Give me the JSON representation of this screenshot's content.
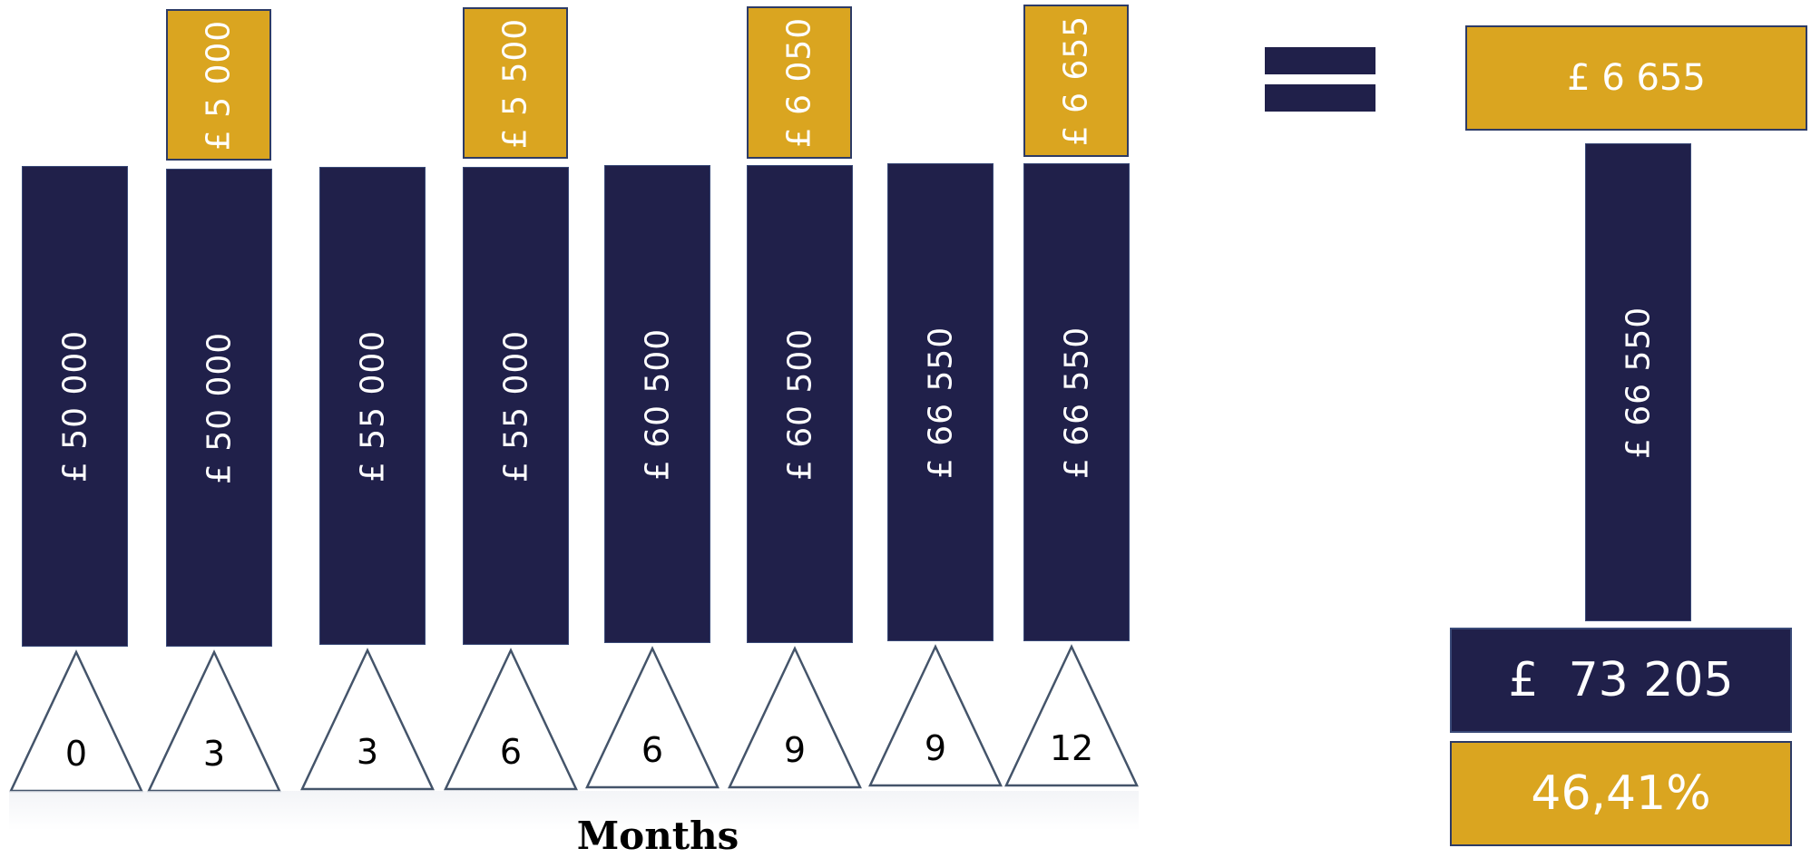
{
  "columns": [
    {
      "base": "£ 50 000",
      "month": "0",
      "interest": ""
    },
    {
      "base": "£ 50 000",
      "month": "3",
      "interest": "£ 5 000"
    },
    {
      "base": "£ 55 000",
      "month": "3",
      "interest": ""
    },
    {
      "base": "£ 55 000",
      "month": "6",
      "interest": "£ 5 500"
    },
    {
      "base": "£ 60 500",
      "month": "6",
      "interest": ""
    },
    {
      "base": "£ 60 500",
      "month": "9",
      "interest": "£ 6 050"
    },
    {
      "base": "£ 66 550",
      "month": "9",
      "interest": ""
    },
    {
      "base": "£ 66 550",
      "month": "12",
      "interest": "£ 6 655"
    }
  ],
  "axis_label": "Months",
  "result": {
    "interest": "£ 6 655",
    "base": "£ 66 550",
    "total": "£  73 205",
    "percent": "46,41%"
  },
  "colors": {
    "navy": "#20204a",
    "gold": "#daa520",
    "border": "#2d3b66"
  }
}
